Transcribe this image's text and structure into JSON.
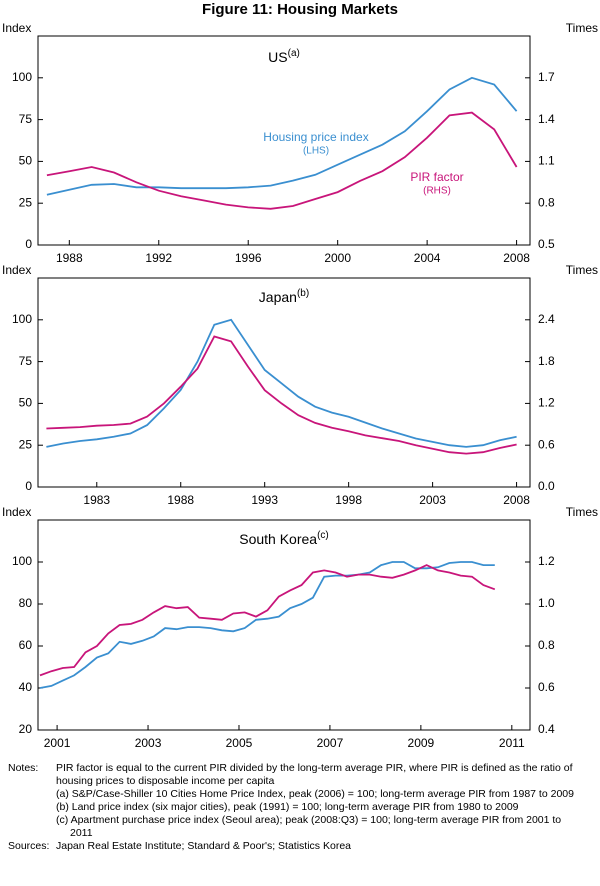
{
  "title": "Figure 11: Housing Markets",
  "chart_data": [
    {
      "type": "line",
      "title": "US",
      "title_note": "(a)",
      "ylabel": "Index",
      "y2label": "Times",
      "x": [
        1987,
        1988,
        1989,
        1990,
        1991,
        1992,
        1993,
        1994,
        1995,
        1996,
        1997,
        1998,
        1999,
        2000,
        2001,
        2002,
        2003,
        2004,
        2005,
        2006,
        2007,
        2008
      ],
      "xlim": [
        1986.6,
        2008.6
      ],
      "xticks": [
        1988,
        1992,
        1996,
        2000,
        2004,
        2008
      ],
      "ylim": [
        0,
        125
      ],
      "yticks": [
        0,
        25,
        50,
        75,
        100
      ],
      "y2lim": [
        0.5,
        2.0
      ],
      "y2ticks": [
        0.5,
        0.8,
        1.1,
        1.4,
        1.7
      ],
      "series": [
        {
          "name": "Housing price index",
          "note": "(LHS)",
          "color": "#3a8fd0",
          "values": [
            30,
            33,
            36,
            36.5,
            34.5,
            34.5,
            34,
            34,
            34,
            34.5,
            35.5,
            38.5,
            42,
            48,
            54,
            60,
            68,
            80,
            93,
            100,
            96,
            80
          ]
        },
        {
          "name": "PIR factor",
          "note": "(RHS)",
          "color": "#c8157a",
          "axis": "y2",
          "values": [
            1.0,
            1.03,
            1.06,
            1.02,
            0.95,
            0.89,
            0.85,
            0.82,
            0.79,
            0.77,
            0.76,
            0.78,
            0.83,
            0.88,
            0.96,
            1.03,
            1.13,
            1.27,
            1.43,
            1.45,
            1.33,
            1.06
          ]
        }
      ]
    },
    {
      "type": "line",
      "title": "Japan",
      "title_note": "(b)",
      "ylabel": "Index",
      "y2label": "Times",
      "x": [
        1980,
        1981,
        1982,
        1983,
        1984,
        1985,
        1986,
        1987,
        1988,
        1989,
        1990,
        1991,
        1992,
        1993,
        1994,
        1995,
        1996,
        1997,
        1998,
        1999,
        2000,
        2001,
        2002,
        2003,
        2004,
        2005,
        2006,
        2007,
        2008
      ],
      "xlim": [
        1979.5,
        2008.8
      ],
      "xticks": [
        1983,
        1988,
        1993,
        1998,
        2003,
        2008
      ],
      "ylim": [
        0,
        125
      ],
      "yticks": [
        0,
        25,
        50,
        75,
        100
      ],
      "y2lim": [
        0,
        3.0
      ],
      "y2ticks": [
        {
          "value": 0,
          "label": "0.0"
        },
        0.6,
        1.2,
        1.8,
        2.4
      ],
      "series": [
        {
          "color": "#3a8fd0",
          "values": [
            24,
            26,
            27.5,
            28.5,
            30,
            32,
            37,
            47,
            58,
            75,
            97,
            100,
            85,
            70,
            62,
            54,
            48,
            44.5,
            42,
            38.5,
            35,
            32,
            29,
            27,
            25,
            24,
            25,
            28,
            30
          ]
        },
        {
          "color": "#c8157a",
          "axis": "y2",
          "values": [
            0.84,
            0.85,
            0.86,
            0.88,
            0.89,
            0.91,
            1.01,
            1.2,
            1.44,
            1.7,
            2.16,
            2.09,
            1.73,
            1.39,
            1.2,
            1.03,
            0.92,
            0.85,
            0.8,
            0.74,
            0.7,
            0.66,
            0.6,
            0.55,
            0.5,
            0.48,
            0.5,
            0.56,
            0.61
          ]
        }
      ]
    },
    {
      "type": "line",
      "title": "South Korea",
      "title_note": "(c)",
      "ylabel": "Index",
      "y2label": "Times",
      "x": [
        2000.625,
        2000.875,
        2001.125,
        2001.375,
        2001.625,
        2001.875,
        2002.125,
        2002.375,
        2002.625,
        2002.875,
        2003.125,
        2003.375,
        2003.625,
        2003.875,
        2004.125,
        2004.375,
        2004.625,
        2004.875,
        2005.125,
        2005.375,
        2005.625,
        2005.875,
        2006.125,
        2006.375,
        2006.625,
        2006.875,
        2007.125,
        2007.375,
        2007.625,
        2007.875,
        2008.125,
        2008.375,
        2008.625,
        2008.875,
        2009.125,
        2009.375,
        2009.625,
        2009.875,
        2010.125,
        2010.375,
        2010.625
      ],
      "xlim": [
        2000.58,
        2011.4
      ],
      "xticks": [
        2001,
        2003,
        2005,
        2007,
        2009,
        2011
      ],
      "ylim": [
        20,
        120
      ],
      "yticks": [
        20,
        40,
        60,
        80,
        100
      ],
      "y2lim": [
        0.4,
        1.4
      ],
      "y2ticks": [
        0.4,
        0.6,
        0.8,
        {
          "value": 1,
          "label": "1.0"
        },
        1.2
      ],
      "series": [
        {
          "color": "#3a8fd0",
          "values": [
            40,
            41,
            43.5,
            46,
            50,
            54.5,
            56.5,
            62,
            61,
            62.5,
            64.5,
            68.5,
            68,
            69,
            69,
            68.5,
            67.5,
            67,
            68.5,
            72.5,
            73,
            74,
            78,
            80,
            83,
            93,
            93.5,
            93.5,
            94,
            95,
            98.5,
            100,
            100,
            97,
            97,
            97.5,
            99.5,
            100,
            100,
            98.5,
            98.5
          ]
        },
        {
          "color": "#c8157a",
          "axis": "y2",
          "values": [
            0.66,
            0.68,
            0.695,
            0.7,
            0.77,
            0.8,
            0.86,
            0.9,
            0.905,
            0.925,
            0.96,
            0.99,
            0.98,
            0.985,
            0.935,
            0.93,
            0.925,
            0.955,
            0.96,
            0.94,
            0.97,
            1.035,
            1.065,
            1.09,
            1.15,
            1.16,
            1.15,
            1.13,
            1.14,
            1.14,
            1.13,
            1.125,
            1.14,
            1.16,
            1.185,
            1.16,
            1.15,
            1.135,
            1.13,
            1.09,
            1.07
          ]
        }
      ]
    }
  ],
  "notes": {
    "label": "Notes:",
    "text": "PIR factor is equal to the current PIR divided by the long-term average PIR, where PIR is defined as the ratio of housing prices to disposable income per capita",
    "items": [
      "(a) S&P/Case-Shiller 10 Cities Home Price Index, peak (2006) = 100; long-term average PIR from 1987 to 2009",
      "(b) Land price index (six major cities), peak (1991) = 100; long-term average PIR from 1980 to 2009",
      "(c) Apartment purchase price index (Seoul area); peak (2008:Q3) = 100; long-term average PIR from 2001 to 2011"
    ]
  },
  "sources": {
    "label": "Sources:",
    "text": "Japan Real Estate Institute; Standard & Poor's; Statistics Korea"
  }
}
